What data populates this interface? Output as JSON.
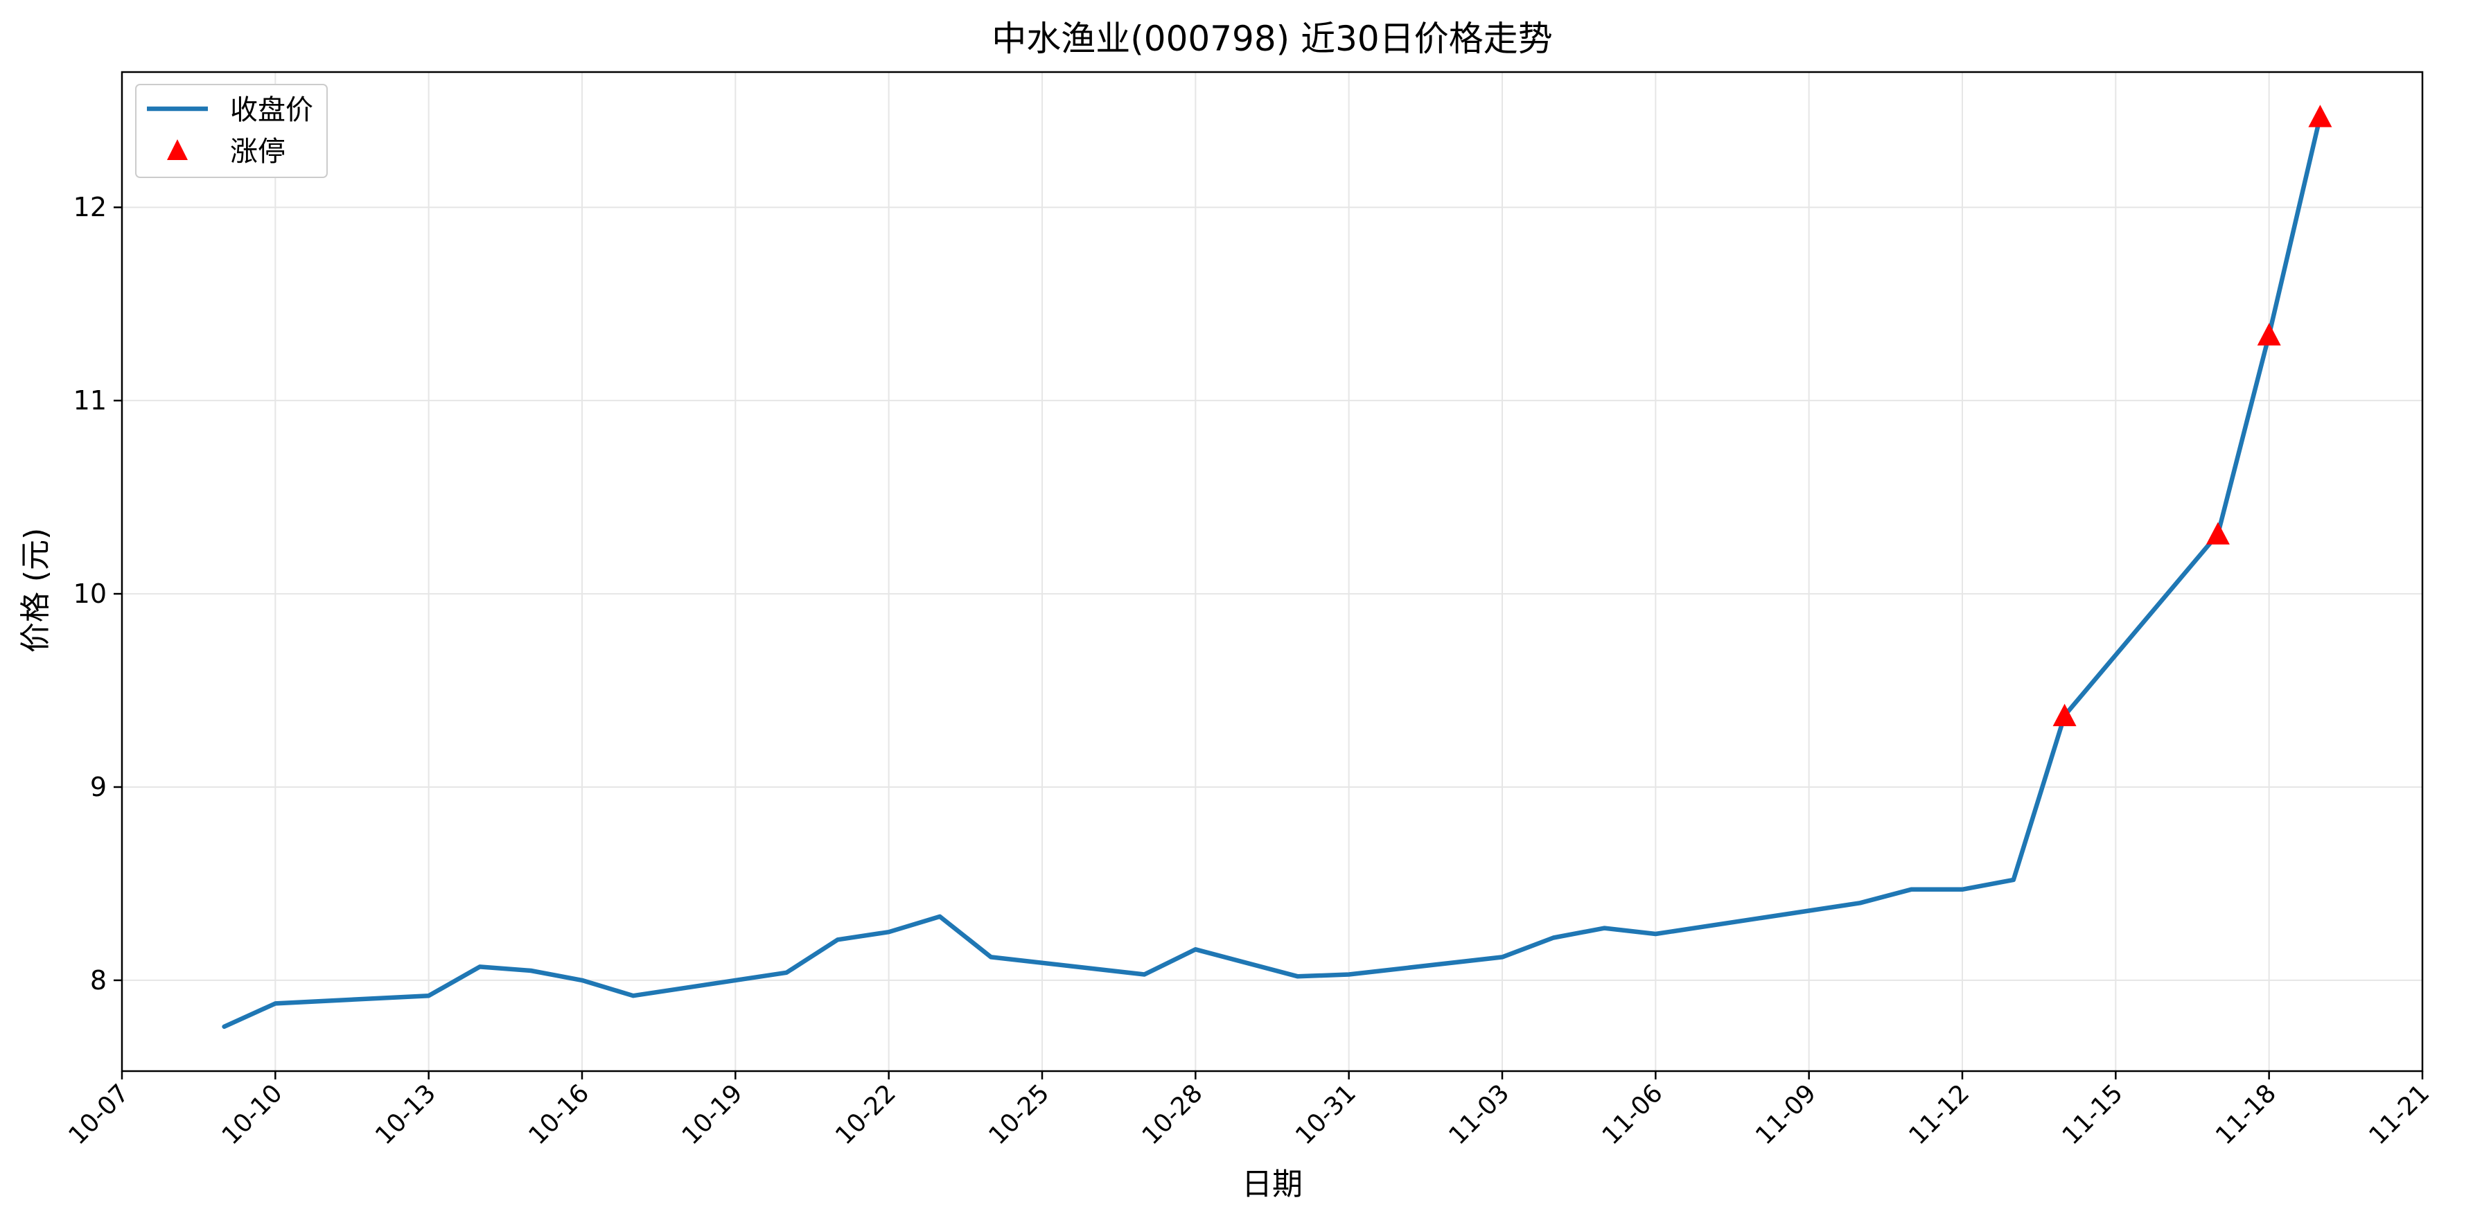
{
  "colors": {
    "line": "#1f77b4",
    "limit_up_marker": "#ff0000",
    "grid": "#e6e6e6",
    "axes": "#000000",
    "legend_border": "#cccccc"
  },
  "chart_data": {
    "type": "line",
    "title": "中水渔业(000798) 近30日价格走势",
    "xlabel": "日期",
    "ylabel": "价格 (元)",
    "x_axis_type": "date",
    "xlim": [
      "10-07",
      "11-21"
    ],
    "ylim": [
      7.53,
      12.7
    ],
    "x_ticks": [
      "10-07",
      "10-10",
      "10-13",
      "10-16",
      "10-19",
      "10-22",
      "10-25",
      "10-28",
      "10-31",
      "11-03",
      "11-06",
      "11-09",
      "11-12",
      "11-15",
      "11-18",
      "11-21"
    ],
    "y_ticks": [
      8,
      9,
      10,
      11,
      12
    ],
    "grid": true,
    "legend_position": "upper-left",
    "series": [
      {
        "name": "收盘价",
        "type": "line",
        "x": [
          "10-09",
          "10-10",
          "10-13",
          "10-14",
          "10-15",
          "10-16",
          "10-17",
          "10-20",
          "10-21",
          "10-22",
          "10-23",
          "10-24",
          "10-27",
          "10-28",
          "10-30",
          "10-31",
          "11-03",
          "11-04",
          "11-05",
          "11-06",
          "11-10",
          "11-11",
          "11-12",
          "11-13",
          "11-14",
          "11-17",
          "11-18",
          "11-19"
        ],
        "y": [
          7.76,
          7.88,
          7.92,
          8.07,
          8.05,
          8.0,
          7.92,
          8.04,
          8.21,
          8.25,
          8.33,
          8.12,
          8.03,
          8.16,
          8.02,
          8.03,
          8.12,
          8.22,
          8.27,
          8.24,
          8.4,
          8.47,
          8.47,
          8.52,
          9.37,
          10.31,
          11.34,
          12.47
        ]
      },
      {
        "name": "涨停",
        "type": "scatter",
        "marker": "triangle",
        "x": [
          "11-14",
          "11-17",
          "11-18",
          "11-19"
        ],
        "y": [
          9.37,
          10.31,
          11.34,
          12.47
        ]
      }
    ]
  }
}
